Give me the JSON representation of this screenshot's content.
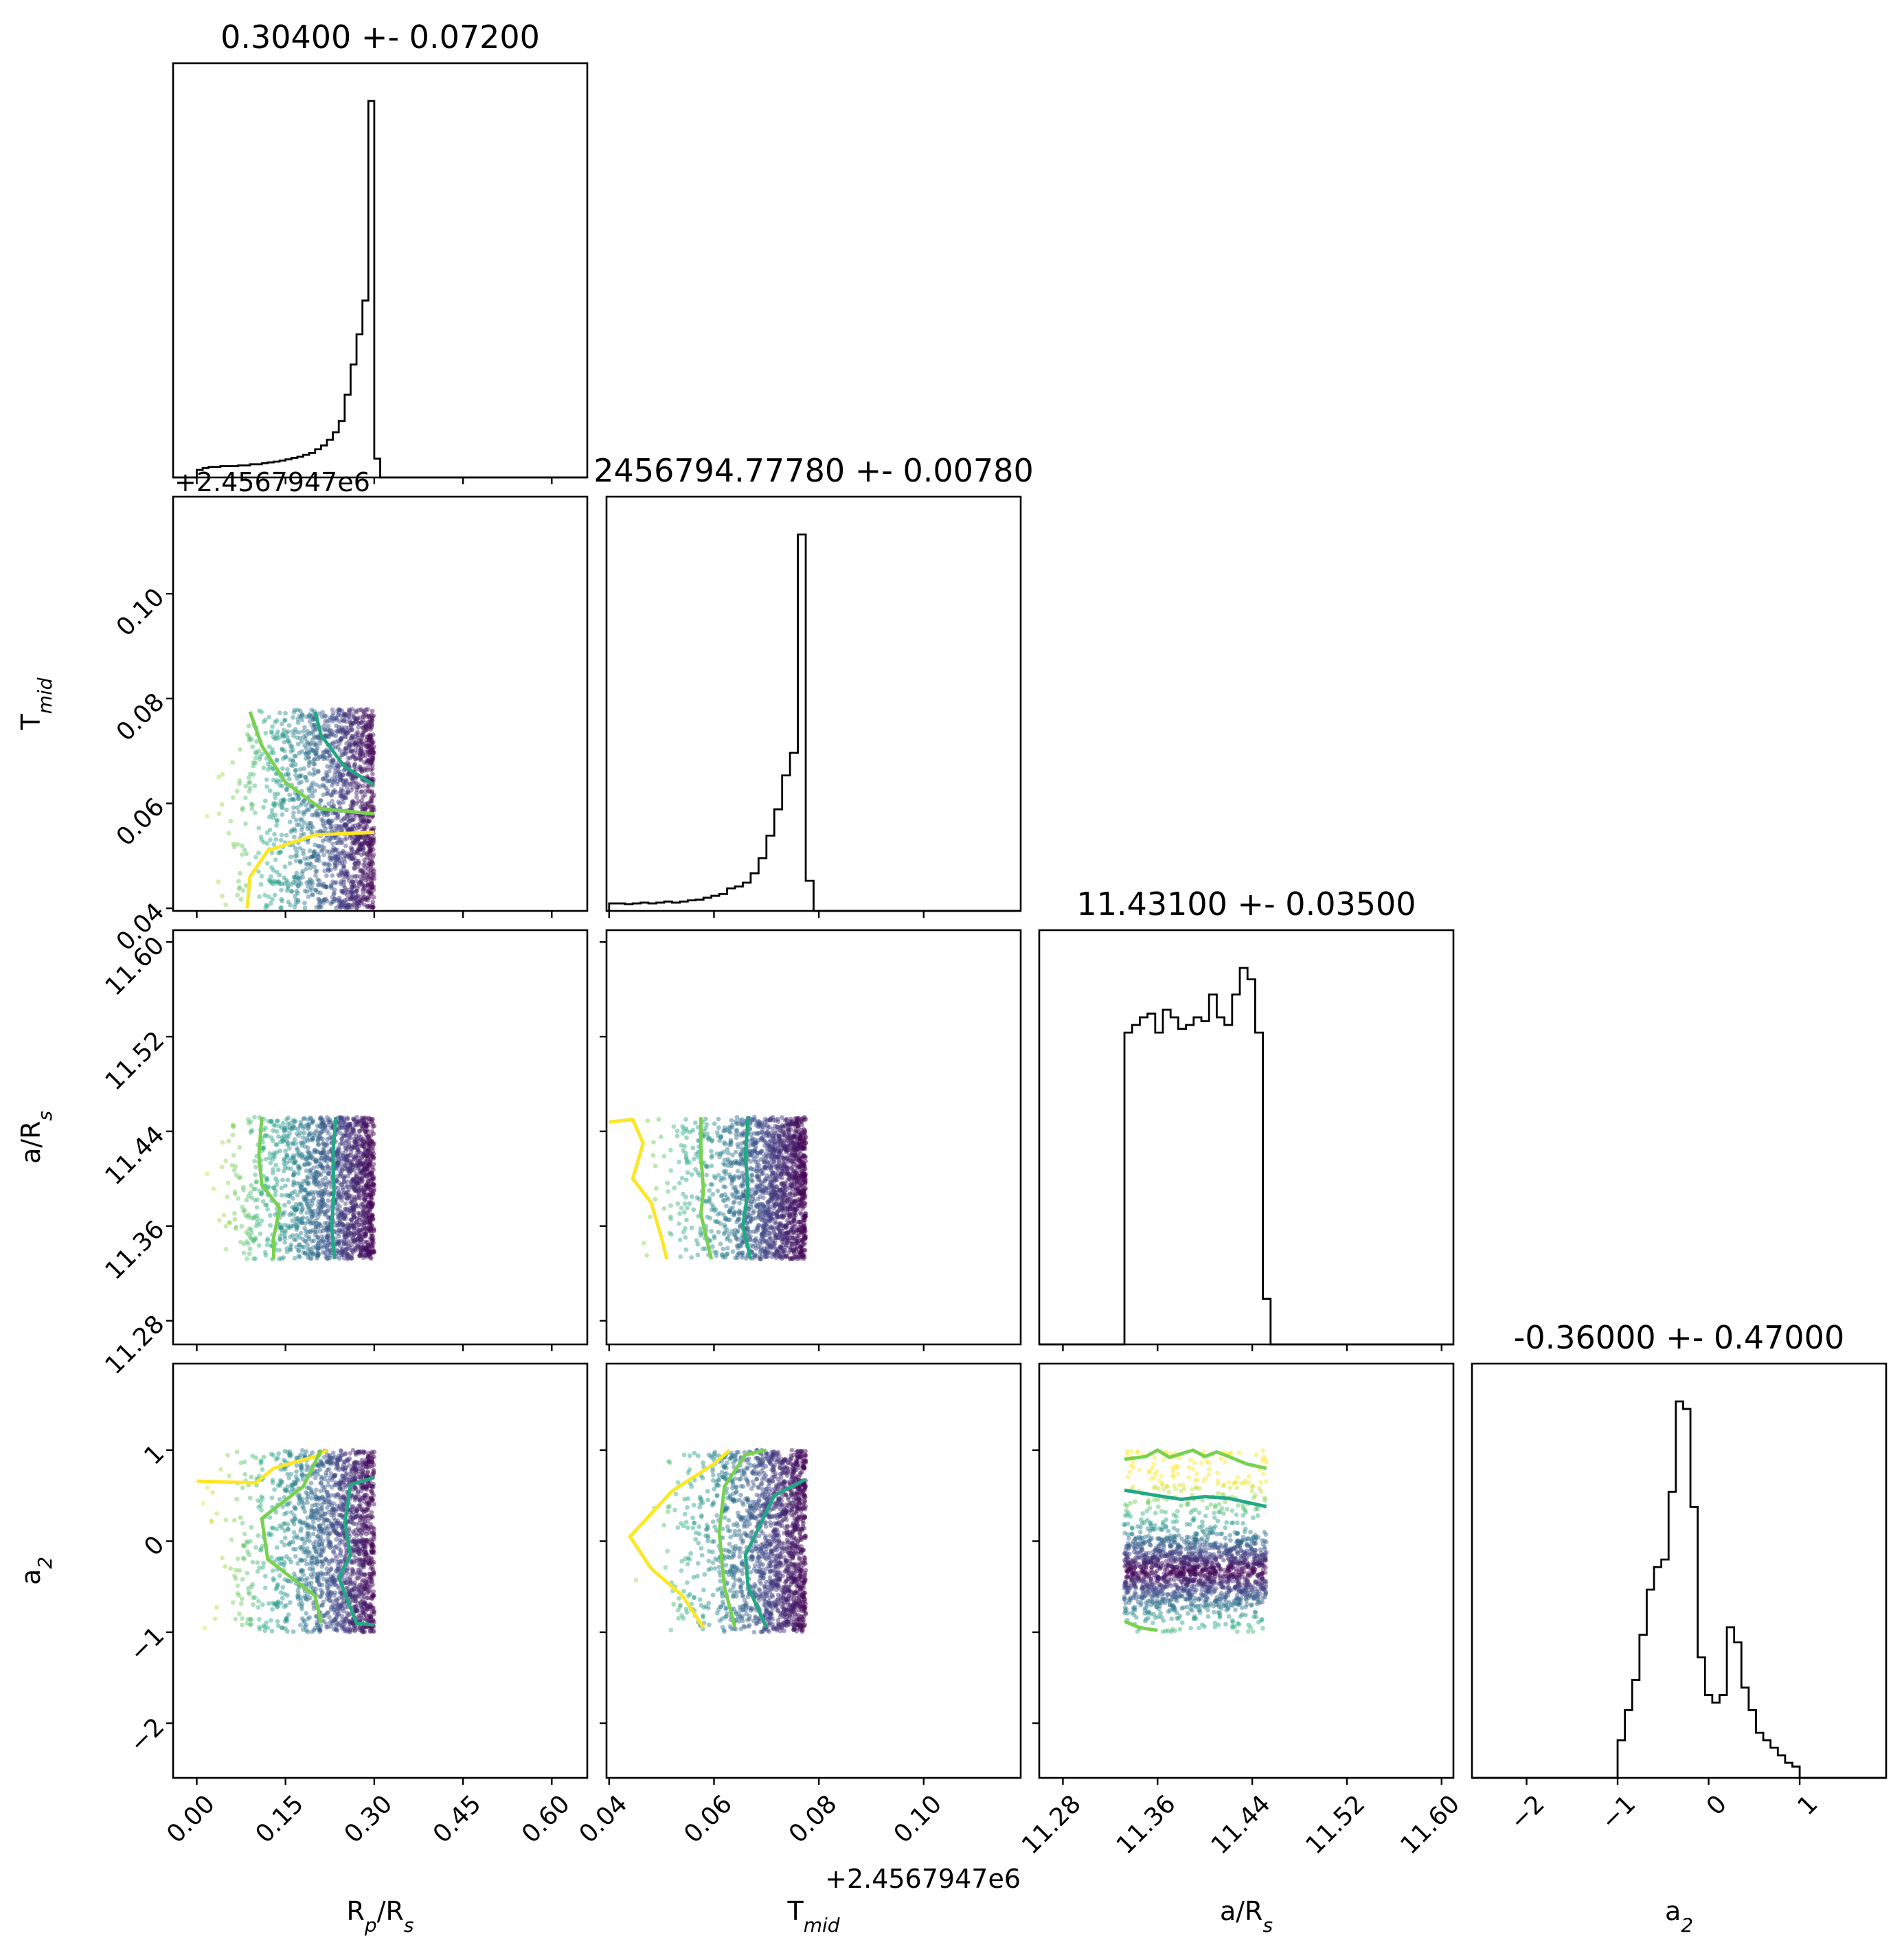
{
  "chart_data": {
    "type": "scatter",
    "subtype": "corner",
    "colormap": [
      "#fde725",
      "#7ad151",
      "#22a884",
      "#2a788e",
      "#414487",
      "#440154"
    ],
    "histogram_color": "#000000",
    "parameters": [
      {
        "name": "R_p/R_s",
        "label": "R",
        "label_sub": "p",
        "label_tail": "/R",
        "label_sub2": "s",
        "title": "0.30400 +- 0.07200",
        "range": [
          -0.04,
          0.66
        ],
        "ticks": [
          0.0,
          0.15,
          0.3,
          0.45,
          0.6
        ],
        "tick_labels": [
          "0.00",
          "0.15",
          "0.30",
          "0.45",
          "0.60"
        ],
        "hist": {
          "edges": [
            0.0,
            0.01,
            0.02,
            0.03,
            0.04,
            0.05,
            0.06,
            0.07,
            0.08,
            0.09,
            0.1,
            0.11,
            0.12,
            0.13,
            0.14,
            0.15,
            0.16,
            0.17,
            0.18,
            0.19,
            0.2,
            0.21,
            0.22,
            0.23,
            0.24,
            0.25,
            0.26,
            0.27,
            0.28,
            0.29,
            0.3,
            0.31
          ],
          "counts": [
            0.02,
            0.025,
            0.028,
            0.028,
            0.03,
            0.03,
            0.03,
            0.032,
            0.032,
            0.035,
            0.035,
            0.038,
            0.04,
            0.042,
            0.045,
            0.048,
            0.052,
            0.055,
            0.06,
            0.065,
            0.075,
            0.085,
            0.1,
            0.12,
            0.15,
            0.22,
            0.3,
            0.38,
            0.47,
            1.0,
            0.05
          ]
        }
      },
      {
        "name": "T_mid",
        "label": "T",
        "label_sub": "mid",
        "title": "2456794.77780 +- 0.00780",
        "offset_text": "+2.4567947e6",
        "range": [
          0.0395,
          0.1185
        ],
        "ticks": [
          0.04,
          0.06,
          0.08,
          0.1
        ],
        "tick_labels": [
          "0.04",
          "0.06",
          "0.08",
          "0.10"
        ],
        "hist": {
          "edges": [
            0.04,
            0.0415,
            0.043,
            0.0445,
            0.046,
            0.0475,
            0.049,
            0.0505,
            0.052,
            0.0535,
            0.055,
            0.0565,
            0.058,
            0.0595,
            0.061,
            0.0625,
            0.064,
            0.0655,
            0.067,
            0.0685,
            0.07,
            0.0715,
            0.073,
            0.0745,
            0.076,
            0.0775,
            0.079
          ],
          "counts": [
            0.02,
            0.02,
            0.018,
            0.02,
            0.022,
            0.02,
            0.022,
            0.025,
            0.022,
            0.025,
            0.028,
            0.03,
            0.035,
            0.04,
            0.045,
            0.06,
            0.065,
            0.075,
            0.1,
            0.14,
            0.2,
            0.27,
            0.36,
            0.42,
            1.0,
            0.08
          ]
        }
      },
      {
        "name": "a/R_s",
        "label": "a/R",
        "label_sub": "s",
        "title": "11.43100 +- 0.03500",
        "range": [
          11.26,
          11.61
        ],
        "ticks": [
          11.28,
          11.36,
          11.44,
          11.52,
          11.6
        ],
        "tick_labels": [
          "11.28",
          "11.36",
          "11.44",
          "11.52",
          "11.60"
        ],
        "hist": {
          "edges": [
            11.332,
            11.3385,
            11.345,
            11.3515,
            11.358,
            11.3645,
            11.371,
            11.3775,
            11.384,
            11.3905,
            11.397,
            11.4035,
            11.41,
            11.4165,
            11.423,
            11.4295,
            11.436,
            11.4425,
            11.449,
            11.4555
          ],
          "counts": [
            0.82,
            0.84,
            0.86,
            0.87,
            0.82,
            0.88,
            0.86,
            0.83,
            0.84,
            0.86,
            0.85,
            0.92,
            0.86,
            0.84,
            0.92,
            0.99,
            0.96,
            0.82,
            0.12
          ]
        }
      },
      {
        "name": "a_2",
        "label": "a",
        "label_sub": "2",
        "title": "-0.36000 +- 0.47000",
        "range": [
          -2.6,
          1.95
        ],
        "ticks": [
          -2,
          -1,
          0,
          1
        ],
        "tick_labels": [
          "−2",
          "−1",
          "0",
          "1"
        ],
        "hist": {
          "edges": [
            -1.0,
            -0.92,
            -0.84,
            -0.76,
            -0.68,
            -0.6,
            -0.52,
            -0.44,
            -0.36,
            -0.28,
            -0.2,
            -0.12,
            -0.04,
            0.04,
            0.12,
            0.2,
            0.28,
            0.36,
            0.44,
            0.52,
            0.6,
            0.68,
            0.76,
            0.84,
            0.92,
            1.0
          ],
          "counts": [
            0.1,
            0.18,
            0.26,
            0.38,
            0.5,
            0.56,
            0.58,
            0.76,
            1.0,
            0.98,
            0.72,
            0.32,
            0.22,
            0.2,
            0.22,
            0.4,
            0.36,
            0.24,
            0.18,
            0.12,
            0.1,
            0.08,
            0.06,
            0.04,
            0.03
          ]
        }
      }
    ],
    "pairs": [
      {
        "x": 0,
        "y": 1,
        "extent": {
          "x": [
            0.0,
            0.3
          ],
          "y": [
            0.04,
            0.078
          ]
        },
        "density": {
          "axis": "x",
          "min": 0.0,
          "max": 0.3,
          "power": 3
        },
        "contours": [
          {
            "level": "#fde725",
            "points": [
              [
                0.085,
                0.04
              ],
              [
                0.09,
                0.046
              ],
              [
                0.12,
                0.051
              ],
              [
                0.2,
                0.054
              ],
              [
                0.3,
                0.0545
              ]
            ]
          },
          {
            "level": "#7ad151",
            "points": [
              [
                0.09,
                0.0775
              ],
              [
                0.11,
                0.071
              ],
              [
                0.15,
                0.064
              ],
              [
                0.21,
                0.059
              ],
              [
                0.3,
                0.058
              ]
            ]
          },
          {
            "level": "#22a884",
            "points": [
              [
                0.2,
                0.0775
              ],
              [
                0.21,
                0.073
              ],
              [
                0.25,
                0.067
              ],
              [
                0.3,
                0.0635
              ]
            ]
          }
        ]
      },
      {
        "x": 0,
        "y": 2,
        "extent": {
          "x": [
            0.0,
            0.3
          ],
          "y": [
            11.332,
            11.452
          ]
        },
        "density": {
          "axis": "x",
          "min": 0.0,
          "max": 0.3,
          "power": 3
        },
        "contours": [
          {
            "level": "#7ad151",
            "points": [
              [
                0.11,
                11.452
              ],
              [
                0.105,
                11.42
              ],
              [
                0.11,
                11.395
              ],
              [
                0.14,
                11.375
              ],
              [
                0.13,
                11.35
              ],
              [
                0.13,
                11.332
              ]
            ]
          },
          {
            "level": "#22a884",
            "points": [
              [
                0.235,
                11.452
              ],
              [
                0.23,
                11.42
              ],
              [
                0.232,
                11.39
              ],
              [
                0.228,
                11.36
              ],
              [
                0.233,
                11.332
              ]
            ]
          }
        ]
      },
      {
        "x": 1,
        "y": 2,
        "extent": {
          "x": [
            0.04,
            0.0775
          ],
          "y": [
            11.332,
            11.452
          ]
        },
        "density": {
          "axis": "x",
          "min": 0.04,
          "max": 0.0775,
          "power": 4
        },
        "contours": [
          {
            "level": "#fde725",
            "points": [
              [
                0.04,
                11.448
              ],
              [
                0.0445,
                11.45
              ],
              [
                0.0465,
                11.43
              ],
              [
                0.0445,
                11.4
              ],
              [
                0.048,
                11.38
              ],
              [
                0.05,
                11.35
              ],
              [
                0.051,
                11.332
              ]
            ]
          },
          {
            "level": "#7ad151",
            "points": [
              [
                0.0575,
                11.452
              ],
              [
                0.0575,
                11.42
              ],
              [
                0.058,
                11.39
              ],
              [
                0.0575,
                11.37
              ],
              [
                0.0595,
                11.332
              ]
            ]
          },
          {
            "level": "#22a884",
            "points": [
              [
                0.0665,
                11.452
              ],
              [
                0.066,
                11.42
              ],
              [
                0.0665,
                11.39
              ],
              [
                0.0655,
                11.36
              ],
              [
                0.067,
                11.332
              ]
            ]
          }
        ]
      },
      {
        "x": 0,
        "y": 3,
        "extent": {
          "x": [
            0.0,
            0.3
          ],
          "y": [
            -1.0,
            1.0
          ]
        },
        "density": {
          "axis": "x",
          "min": 0.0,
          "max": 0.3,
          "power": 3
        },
        "contours": [
          {
            "level": "#fde725",
            "points": [
              [
                0.0,
                0.66
              ],
              [
                0.1,
                0.64
              ],
              [
                0.13,
                0.8
              ],
              [
                0.2,
                0.93
              ],
              [
                0.22,
                1.0
              ]
            ]
          },
          {
            "level": "#7ad151",
            "points": [
              [
                0.21,
                1.0
              ],
              [
                0.18,
                0.6
              ],
              [
                0.11,
                0.25
              ],
              [
                0.12,
                -0.2
              ],
              [
                0.2,
                -0.6
              ],
              [
                0.21,
                -0.9
              ]
            ]
          },
          {
            "level": "#22a884",
            "points": [
              [
                0.3,
                0.7
              ],
              [
                0.26,
                0.62
              ],
              [
                0.25,
                0.2
              ],
              [
                0.26,
                -0.15
              ],
              [
                0.24,
                -0.4
              ],
              [
                0.27,
                -0.9
              ],
              [
                0.3,
                -0.92
              ]
            ]
          }
        ]
      },
      {
        "x": 1,
        "y": 3,
        "extent": {
          "x": [
            0.04,
            0.0775
          ],
          "y": [
            -1.0,
            1.0
          ]
        },
        "density": {
          "axis": "x",
          "min": 0.04,
          "max": 0.0775,
          "power": 4
        },
        "contours": [
          {
            "level": "#fde725",
            "points": [
              [
                0.063,
                1.0
              ],
              [
                0.06,
                0.85
              ],
              [
                0.052,
                0.55
              ],
              [
                0.044,
                0.05
              ],
              [
                0.048,
                -0.3
              ],
              [
                0.054,
                -0.6
              ],
              [
                0.058,
                -0.95
              ]
            ]
          },
          {
            "level": "#7ad151",
            "points": [
              [
                0.07,
                1.0
              ],
              [
                0.066,
                0.95
              ],
              [
                0.062,
                0.6
              ],
              [
                0.061,
                0.1
              ],
              [
                0.062,
                -0.5
              ],
              [
                0.064,
                -0.95
              ]
            ]
          },
          {
            "level": "#22a884",
            "points": [
              [
                0.0775,
                0.68
              ],
              [
                0.0715,
                0.5
              ],
              [
                0.069,
                0.2
              ],
              [
                0.066,
                -0.15
              ],
              [
                0.0665,
                -0.5
              ],
              [
                0.07,
                -0.95
              ]
            ]
          }
        ]
      },
      {
        "x": 2,
        "y": 3,
        "extent": {
          "x": [
            11.332,
            11.452
          ],
          "y": [
            -1.0,
            1.0
          ]
        },
        "density": {
          "axis": "y",
          "center": -0.33,
          "width": 0.45
        },
        "contours": [
          {
            "level": "#7ad151",
            "points": [
              [
                11.332,
                0.9
              ],
              [
                11.35,
                0.93
              ],
              [
                11.36,
                1.0
              ],
              [
                11.37,
                0.92
              ],
              [
                11.38,
                0.96
              ],
              [
                11.39,
                1.0
              ],
              [
                11.4,
                0.93
              ],
              [
                11.41,
                0.98
              ],
              [
                11.42,
                0.93
              ],
              [
                11.435,
                0.85
              ],
              [
                11.452,
                0.8
              ]
            ]
          },
          {
            "level": "#22a884",
            "points": [
              [
                11.332,
                0.56
              ],
              [
                11.36,
                0.5
              ],
              [
                11.38,
                0.46
              ],
              [
                11.4,
                0.49
              ],
              [
                11.42,
                0.47
              ],
              [
                11.452,
                0.38
              ]
            ]
          },
          {
            "level": "#7ad151",
            "points": [
              [
                11.332,
                -0.88
              ],
              [
                11.345,
                -0.95
              ],
              [
                11.36,
                -0.98
              ]
            ]
          }
        ]
      }
    ]
  }
}
